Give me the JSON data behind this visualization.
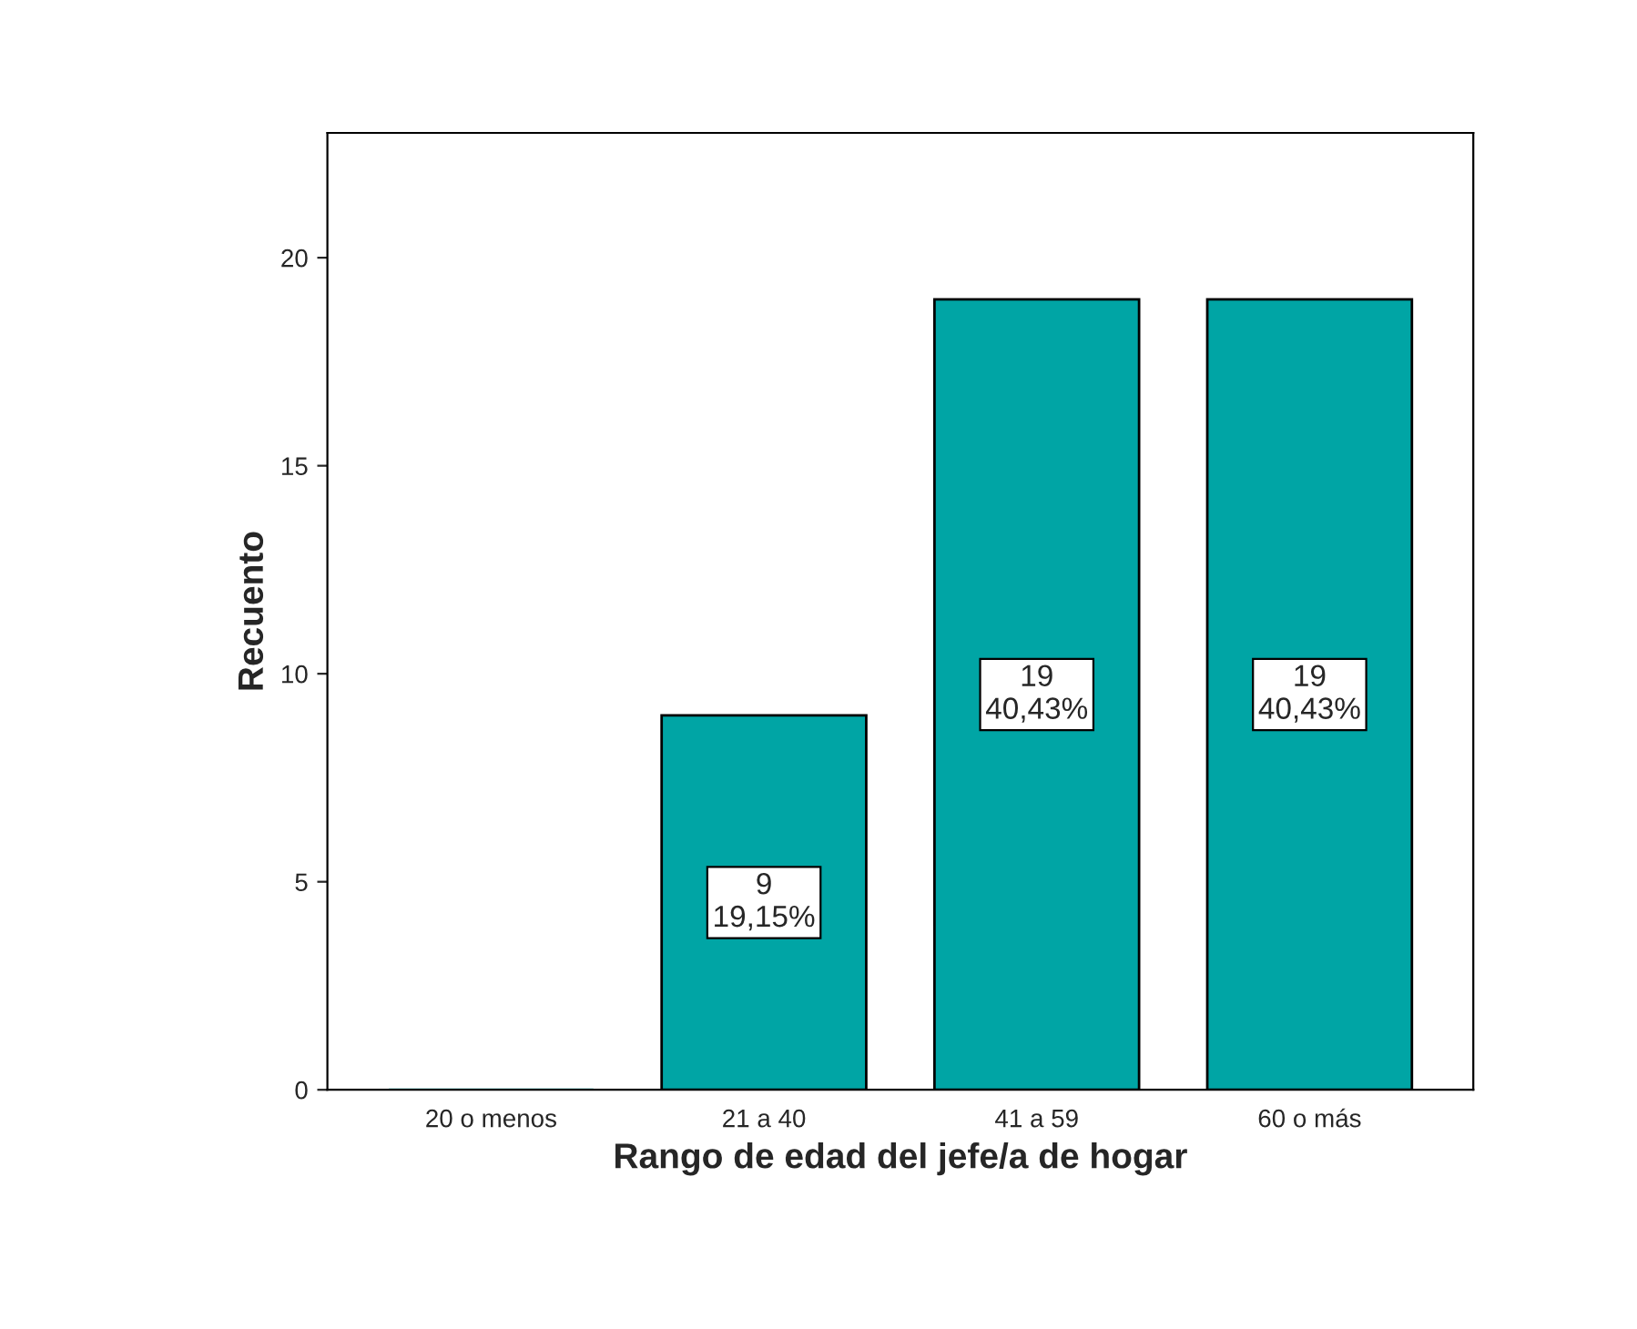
{
  "chart_data": {
    "type": "bar",
    "xlabel": "Rango de edad del jefe/a de hogar",
    "ylabel": "Recuento",
    "categories": [
      "20 o menos",
      "21 a 40",
      "41 a 59",
      "60 o más"
    ],
    "values": [
      0,
      9,
      19,
      19
    ],
    "value_labels": [
      null,
      "9\n19,15%",
      "19\n40,43%",
      "19\n40,43%"
    ],
    "color": "#00a5a5",
    "ylim": [
      0,
      23
    ],
    "yticks": [
      0,
      5,
      10,
      15,
      20
    ],
    "grid": false,
    "legend": false
  }
}
